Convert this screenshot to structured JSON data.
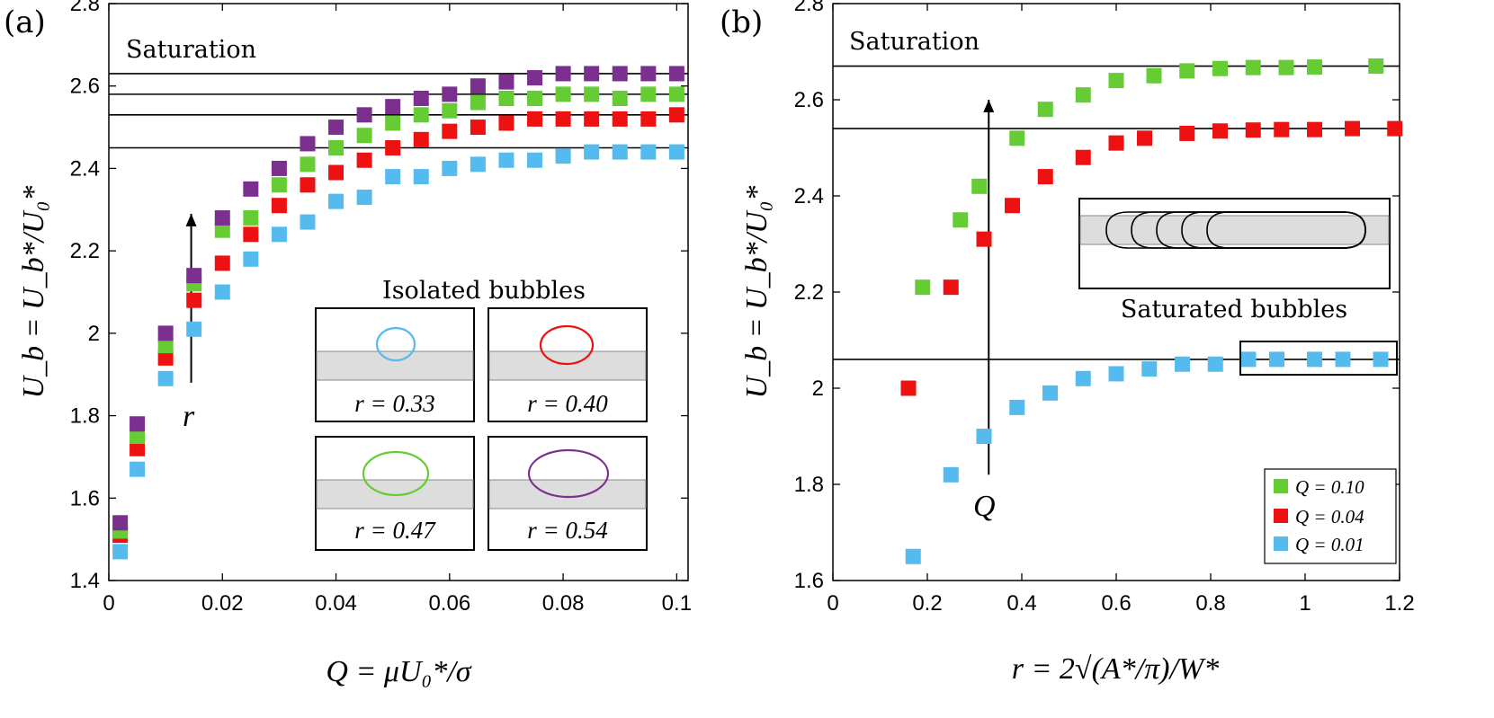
{
  "colors": {
    "green": "#66cc33",
    "red": "#ee1111",
    "blue": "#55bbee",
    "purple": "#7b2f8e",
    "band": "#dddddd"
  },
  "chart_data": [
    {
      "panel": "(a)",
      "type": "scatter",
      "xlabel": "Q = μU₀*/σ",
      "ylabel": "U_b = U_b*/U₀*",
      "xlim": [
        0,
        0.102
      ],
      "ylim": [
        1.4,
        2.8
      ],
      "xticks": [
        "0",
        "0.02",
        "0.04",
        "0.06",
        "0.08",
        "0.1"
      ],
      "yticks": [
        "1.4",
        "1.6",
        "1.8",
        "2",
        "2.2",
        "2.4",
        "2.6",
        "2.8"
      ],
      "saturation_label": "Saturation",
      "saturation_levels": [
        2.63,
        2.58,
        2.53,
        2.45
      ],
      "arrow_label": "r",
      "inset_title": "Isolated bubbles",
      "inset_labels": [
        "r = 0.33",
        "r = 0.40",
        "r = 0.47",
        "r = 0.54"
      ],
      "x": [
        0.002,
        0.005,
        0.01,
        0.015,
        0.02,
        0.025,
        0.03,
        0.035,
        0.04,
        0.045,
        0.05,
        0.055,
        0.06,
        0.065,
        0.07,
        0.075,
        0.08,
        0.085,
        0.09,
        0.095,
        0.1
      ],
      "series": [
        {
          "name": "r = 0.33",
          "color": "blue",
          "values": [
            1.47,
            1.67,
            1.89,
            2.01,
            2.1,
            2.18,
            2.24,
            2.27,
            2.32,
            2.33,
            2.38,
            2.38,
            2.4,
            2.41,
            2.42,
            2.42,
            2.43,
            2.44,
            2.44,
            2.44,
            2.44
          ]
        },
        {
          "name": "r = 0.40",
          "color": "red",
          "values": [
            1.51,
            1.72,
            1.94,
            2.08,
            2.17,
            2.24,
            2.31,
            2.36,
            2.39,
            2.42,
            2.45,
            2.47,
            2.49,
            2.5,
            2.51,
            2.52,
            2.52,
            2.52,
            2.52,
            2.52,
            2.53
          ]
        },
        {
          "name": "r = 0.47",
          "color": "green",
          "values": [
            1.52,
            1.75,
            1.97,
            2.12,
            2.25,
            2.28,
            2.36,
            2.41,
            2.45,
            2.48,
            2.51,
            2.53,
            2.54,
            2.56,
            2.57,
            2.57,
            2.58,
            2.58,
            2.57,
            2.58,
            2.58
          ]
        },
        {
          "name": "r = 0.54",
          "color": "purple",
          "values": [
            1.54,
            1.78,
            2.0,
            2.14,
            2.28,
            2.35,
            2.4,
            2.46,
            2.5,
            2.53,
            2.55,
            2.57,
            2.58,
            2.6,
            2.61,
            2.62,
            2.63,
            2.63,
            2.63,
            2.63,
            2.63
          ]
        }
      ]
    },
    {
      "panel": "(b)",
      "type": "scatter",
      "xlabel": "r = 2√(A*/π)/W*",
      "ylabel": "U_b = U_b*/U₀*",
      "xlim": [
        0,
        1.2
      ],
      "ylim": [
        1.6,
        2.8
      ],
      "xticks": [
        "0",
        "0.2",
        "0.4",
        "0.6",
        "0.8",
        "1",
        "1.2"
      ],
      "yticks": [
        "1.6",
        "1.8",
        "2",
        "2.2",
        "2.4",
        "2.6",
        "2.8"
      ],
      "saturation_label": "Saturation",
      "saturation_levels": [
        2.67,
        2.54,
        2.06
      ],
      "arrow_label": "Q",
      "inset_title": "Saturated bubbles",
      "legend": [
        "Q = 0.10",
        "Q = 0.04",
        "Q = 0.01"
      ],
      "legend_position": "bottom-right",
      "series": [
        {
          "name": "Q = 0.10",
          "color": "green",
          "x": [
            0.19,
            0.27,
            0.31,
            0.39,
            0.45,
            0.53,
            0.6,
            0.68,
            0.75,
            0.82,
            0.89,
            0.96,
            1.02,
            1.15
          ],
          "values": [
            2.21,
            2.35,
            2.42,
            2.52,
            2.58,
            2.61,
            2.64,
            2.65,
            2.66,
            2.665,
            2.667,
            2.667,
            2.668,
            2.67
          ]
        },
        {
          "name": "Q = 0.04",
          "color": "red",
          "x": [
            0.16,
            0.25,
            0.32,
            0.38,
            0.45,
            0.53,
            0.6,
            0.66,
            0.75,
            0.82,
            0.89,
            0.95,
            1.02,
            1.1,
            1.19
          ],
          "values": [
            2.0,
            2.21,
            2.31,
            2.38,
            2.44,
            2.48,
            2.51,
            2.52,
            2.53,
            2.535,
            2.537,
            2.538,
            2.538,
            2.54,
            2.54
          ]
        },
        {
          "name": "Q = 0.01",
          "color": "blue",
          "x": [
            0.17,
            0.25,
            0.32,
            0.39,
            0.46,
            0.53,
            0.6,
            0.67,
            0.74,
            0.81,
            0.88,
            0.94,
            1.02,
            1.08,
            1.16
          ],
          "values": [
            1.65,
            1.82,
            1.9,
            1.96,
            1.99,
            2.02,
            2.03,
            2.04,
            2.05,
            2.05,
            2.06,
            2.06,
            2.06,
            2.06,
            2.06
          ]
        }
      ]
    }
  ]
}
